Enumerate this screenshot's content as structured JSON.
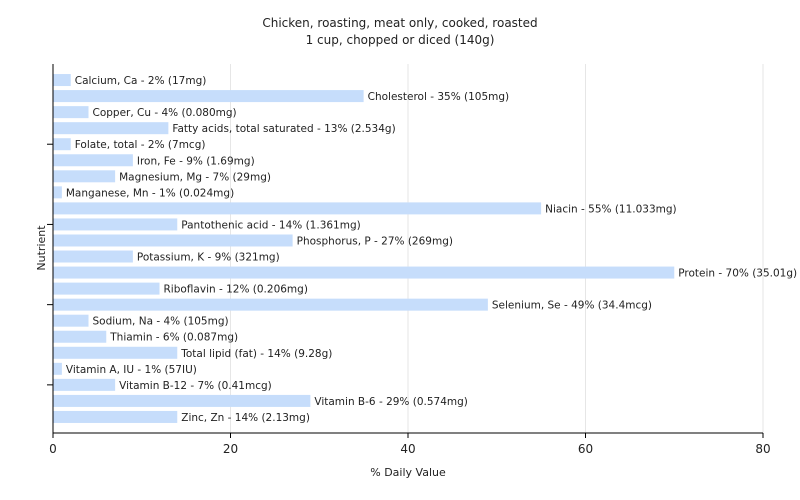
{
  "chart_data": {
    "type": "bar",
    "orientation": "horizontal",
    "title": "Chicken, roasting, meat only, cooked, roasted",
    "subtitle": "1 cup, chopped or diced (140g)",
    "xlabel": "% Daily Value",
    "ylabel": "Nutrient",
    "xlim": [
      0,
      80
    ],
    "xticks": [
      0,
      20,
      40,
      60,
      80
    ],
    "grid": true,
    "bar_color": "#c6ddfb",
    "categories": [
      "Calcium, Ca",
      "Cholesterol",
      "Copper, Cu",
      "Fatty acids, total saturated",
      "Folate, total",
      "Iron, Fe",
      "Magnesium, Mg",
      "Manganese, Mn",
      "Niacin",
      "Pantothenic acid",
      "Phosphorus, P",
      "Potassium, K",
      "Protein",
      "Riboflavin",
      "Selenium, Se",
      "Sodium, Na",
      "Thiamin",
      "Total lipid (fat)",
      "Vitamin A, IU",
      "Vitamin B-12",
      "Vitamin B-6",
      "Zinc, Zn"
    ],
    "values": [
      2,
      35,
      4,
      13,
      2,
      9,
      7,
      1,
      55,
      14,
      27,
      9,
      70,
      12,
      49,
      4,
      6,
      14,
      1,
      7,
      29,
      14
    ],
    "labels": [
      "Calcium, Ca - 2% (17mg)",
      "Cholesterol - 35% (105mg)",
      "Copper, Cu - 4% (0.080mg)",
      "Fatty acids, total saturated - 13% (2.534g)",
      "Folate, total - 2% (7mcg)",
      "Iron, Fe - 9% (1.69mg)",
      "Magnesium, Mg - 7% (29mg)",
      "Manganese, Mn - 1% (0.024mg)",
      "Niacin - 55% (11.033mg)",
      "Pantothenic acid - 14% (1.361mg)",
      "Phosphorus, P - 27% (269mg)",
      "Potassium, K - 9% (321mg)",
      "Protein - 70% (35.01g)",
      "Riboflavin - 12% (0.206mg)",
      "Selenium, Se - 49% (34.4mcg)",
      "Sodium, Na - 4% (105mg)",
      "Thiamin - 6% (0.087mg)",
      "Total lipid (fat) - 14% (9.28g)",
      "Vitamin A, IU - 1% (57IU)",
      "Vitamin B-12 - 7% (0.41mcg)",
      "Vitamin B-6 - 29% (0.574mg)",
      "Zinc, Zn - 14% (2.13mg)"
    ]
  }
}
